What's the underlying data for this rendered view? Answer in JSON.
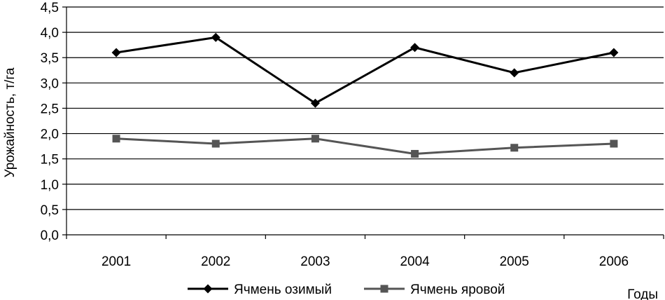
{
  "chart_data": {
    "type": "line",
    "title": "",
    "xlabel": "Годы",
    "ylabel": "Урожайность, т/га",
    "categories": [
      "2001",
      "2002",
      "2003",
      "2004",
      "2005",
      "2006"
    ],
    "ylim": [
      0,
      4.5
    ],
    "yticks": [
      "0,0",
      "0,5",
      "1,0",
      "1,5",
      "2,0",
      "2,5",
      "3,0",
      "3,5",
      "4,0",
      "4,5"
    ],
    "grid": true,
    "legend_position": "bottom",
    "series": [
      {
        "name": "Ячмень озимый",
        "values": [
          3.6,
          3.9,
          2.6,
          3.7,
          3.2,
          3.6
        ],
        "color": "#000000",
        "marker": "diamond"
      },
      {
        "name": "Ячмень яровой",
        "values": [
          1.9,
          1.8,
          1.9,
          1.6,
          1.72,
          1.8
        ],
        "color": "#555555",
        "marker": "square"
      }
    ]
  }
}
